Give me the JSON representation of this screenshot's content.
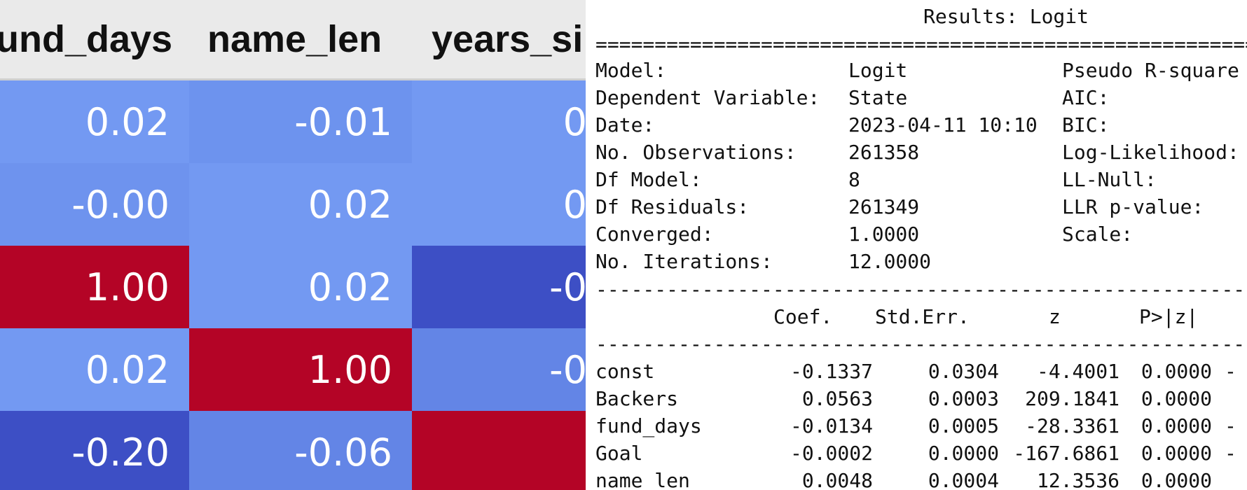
{
  "heatmap_table": {
    "columns": [
      "und_days",
      "name_len",
      "years_si"
    ],
    "rows": [
      [
        "0.02",
        "-0.01",
        "0"
      ],
      [
        "-0.00",
        "0.02",
        "0"
      ],
      [
        "1.00",
        "0.02",
        "-0"
      ],
      [
        "0.02",
        "1.00",
        "-0"
      ],
      [
        "-0.20",
        "-0.06",
        ""
      ]
    ],
    "cell_colors": [
      [
        "#7399f2",
        "#6d93ee",
        "#7399f2"
      ],
      [
        "#6e93ee",
        "#7399f2",
        "#7399f2"
      ],
      [
        "#b40426",
        "#7399f2",
        "#3d4fc5"
      ],
      [
        "#7399f2",
        "#b40426",
        "#6385e6"
      ],
      [
        "#3d4fc5",
        "#6385e6",
        "#b40426"
      ]
    ]
  },
  "summary": {
    "title": "Results: Logit",
    "rule_top": "==========================================================================",
    "info_rows": [
      {
        "label": "Model:",
        "value": "Logit",
        "label2": "Pseudo R-square"
      },
      {
        "label": "Dependent Variable:",
        "value": "State",
        "label2": "AIC:"
      },
      {
        "label": "Date:",
        "value": "2023-04-11 10:10",
        "label2": "BIC:"
      },
      {
        "label": "No. Observations:",
        "value": "261358",
        "label2": "Log-Likelihood:"
      },
      {
        "label": "Df Model:",
        "value": "8",
        "label2": "LL-Null:"
      },
      {
        "label": "Df Residuals:",
        "value": "261349",
        "label2": "LLR p-value:"
      },
      {
        "label": "Converged:",
        "value": "1.0000",
        "label2": "Scale:"
      },
      {
        "label": "No. Iterations:",
        "value": "12.0000",
        "label2": ""
      }
    ],
    "rule_mid": "--------------------------------------------------------------------------",
    "coef_header": {
      "coef": "Coef.",
      "stderr": "Std.Err.",
      "z": "z",
      "p": "P>|z|"
    },
    "coef_rows": [
      {
        "name": "const",
        "coef": "-0.1337",
        "stderr": "0.0304",
        "z": "-4.4001",
        "p": "0.0000",
        "tail": "-"
      },
      {
        "name": "Backers",
        "coef": "0.0563",
        "stderr": "0.0003",
        "z": "209.1841",
        "p": "0.0000",
        "tail": ""
      },
      {
        "name": "fund_days",
        "coef": "-0.0134",
        "stderr": "0.0005",
        "z": "-28.3361",
        "p": "0.0000",
        "tail": "-"
      },
      {
        "name": "Goal",
        "coef": "-0.0002",
        "stderr": "0.0000",
        "z": "-167.6861",
        "p": "0.0000",
        "tail": "-"
      },
      {
        "name": "name_len",
        "coef": "0.0048",
        "stderr": "0.0004",
        "z": "12.3536",
        "p": "0.0000",
        "tail": ""
      }
    ]
  }
}
